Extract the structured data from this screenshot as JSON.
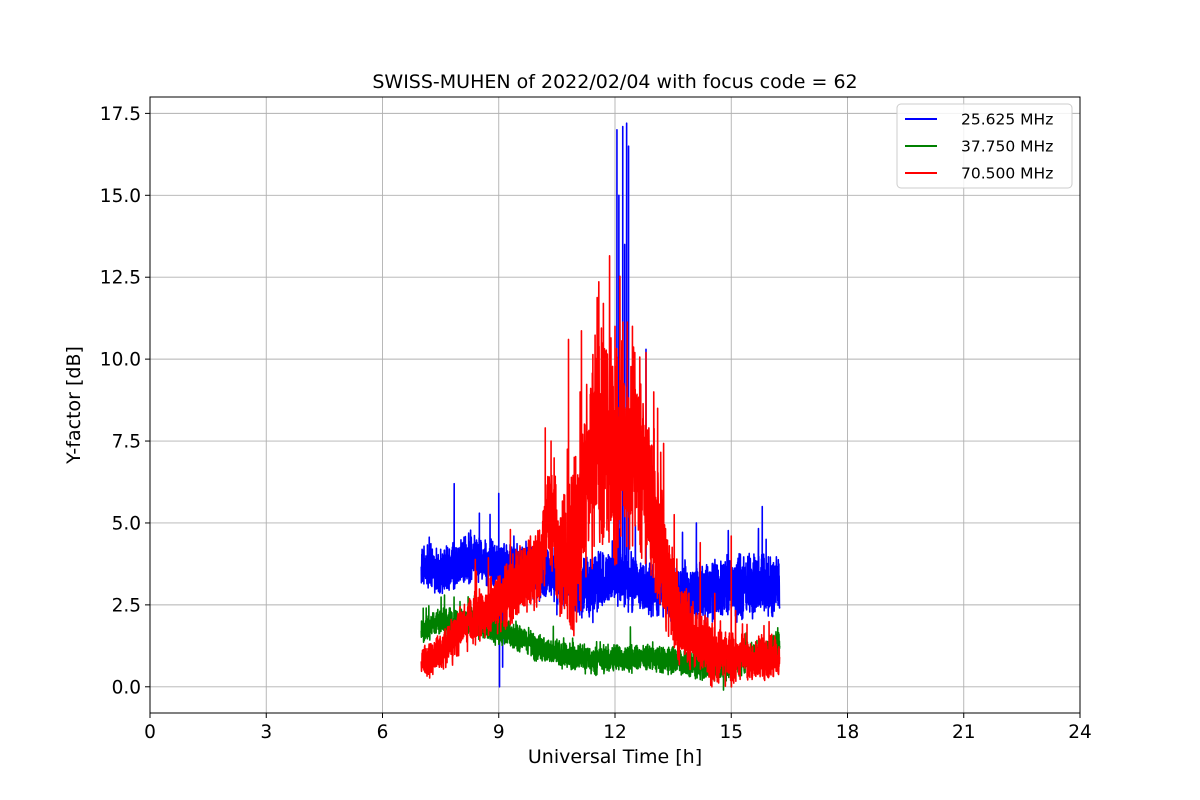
{
  "chart_data": {
    "type": "line",
    "title": "SWISS-MUHEN of 2022/02/04 with focus code = 62",
    "xlabel": "Universal Time [h]",
    "ylabel": "Y-factor [dB]",
    "xlim": [
      0,
      24
    ],
    "ylim": [
      -0.8,
      18.0
    ],
    "xticks": [
      0,
      3,
      6,
      9,
      12,
      15,
      18,
      21,
      24
    ],
    "xtick_labels": [
      "0",
      "3",
      "6",
      "9",
      "12",
      "15",
      "18",
      "21",
      "24"
    ],
    "yticks": [
      0.0,
      2.5,
      5.0,
      7.5,
      10.0,
      12.5,
      15.0,
      17.5
    ],
    "ytick_labels": [
      "0.0",
      "2.5",
      "5.0",
      "7.5",
      "10.0",
      "12.5",
      "15.0",
      "17.5"
    ],
    "grid": true,
    "legend_position": "top-right",
    "series": [
      {
        "name": "25.625 MHz",
        "color": "#0000ff",
        "anchors": [
          [
            7.0,
            3.7
          ],
          [
            7.5,
            3.5
          ],
          [
            8.0,
            3.8
          ],
          [
            8.5,
            3.9
          ],
          [
            9.0,
            3.6
          ],
          [
            9.5,
            3.7
          ],
          [
            10.0,
            3.5
          ],
          [
            10.5,
            3.3
          ],
          [
            11.0,
            3.1
          ],
          [
            11.5,
            3.0
          ],
          [
            12.0,
            3.5
          ],
          [
            12.5,
            3.1
          ],
          [
            13.0,
            2.9
          ],
          [
            13.5,
            2.8
          ],
          [
            14.0,
            2.9
          ],
          [
            14.5,
            2.9
          ],
          [
            15.0,
            3.1
          ],
          [
            15.5,
            3.0
          ],
          [
            16.25,
            3.1
          ]
        ],
        "noise": [
          [
            7.0,
            0.55
          ],
          [
            12.0,
            0.8
          ],
          [
            13.0,
            0.6
          ],
          [
            14.0,
            0.8
          ],
          [
            16.25,
            0.8
          ]
        ],
        "spikes": [
          [
            7.85,
            6.2
          ],
          [
            8.5,
            5.3
          ],
          [
            9.0,
            5.9
          ],
          [
            9.02,
            0.0
          ],
          [
            9.1,
            0.6
          ],
          [
            12.05,
            17.0
          ],
          [
            12.2,
            17.1
          ],
          [
            12.3,
            17.2
          ],
          [
            12.1,
            15.0
          ],
          [
            12.25,
            13.5
          ],
          [
            12.35,
            16.5
          ],
          [
            12.8,
            10.3
          ],
          [
            14.1,
            5.0
          ],
          [
            15.8,
            5.5
          ],
          [
            15.9,
            4.5
          ],
          [
            10.5,
            2.2
          ]
        ]
      },
      {
        "name": "37.750 MHz",
        "color": "#008000",
        "anchors": [
          [
            7.0,
            1.7
          ],
          [
            7.5,
            2.0
          ],
          [
            8.0,
            2.0
          ],
          [
            8.5,
            1.9
          ],
          [
            9.0,
            1.7
          ],
          [
            9.5,
            1.5
          ],
          [
            10.0,
            1.2
          ],
          [
            10.5,
            1.0
          ],
          [
            11.0,
            0.9
          ],
          [
            11.5,
            0.8
          ],
          [
            12.0,
            0.9
          ],
          [
            12.5,
            0.85
          ],
          [
            13.0,
            0.9
          ],
          [
            13.5,
            0.8
          ],
          [
            14.0,
            0.7
          ],
          [
            14.5,
            0.6
          ],
          [
            15.0,
            0.65
          ],
          [
            15.5,
            0.9
          ],
          [
            16.0,
            1.1
          ],
          [
            16.25,
            1.3
          ]
        ],
        "noise": [
          [
            7.0,
            0.35
          ],
          [
            16.25,
            0.35
          ]
        ],
        "spikes": [
          [
            7.05,
            2.4
          ],
          [
            7.6,
            2.8
          ],
          [
            8.0,
            2.6
          ],
          [
            14.8,
            -0.1
          ],
          [
            15.0,
            0.0
          ],
          [
            16.2,
            1.8
          ]
        ]
      },
      {
        "name": "70.500 MHz",
        "color": "#ff0000",
        "anchors": [
          [
            7.0,
            0.7
          ],
          [
            7.5,
            1.0
          ],
          [
            8.0,
            1.7
          ],
          [
            8.5,
            2.2
          ],
          [
            9.0,
            2.6
          ],
          [
            9.5,
            3.2
          ],
          [
            10.0,
            3.6
          ],
          [
            10.3,
            5.0
          ],
          [
            10.6,
            4.2
          ],
          [
            11.0,
            4.5
          ],
          [
            11.3,
            6.5
          ],
          [
            11.6,
            8.0
          ],
          [
            12.0,
            7.0
          ],
          [
            12.3,
            7.5
          ],
          [
            12.7,
            6.8
          ],
          [
            13.0,
            5.5
          ],
          [
            13.3,
            3.5
          ],
          [
            13.6,
            2.2
          ],
          [
            14.0,
            1.6
          ],
          [
            14.5,
            1.0
          ],
          [
            15.0,
            0.9
          ],
          [
            15.5,
            0.8
          ],
          [
            16.25,
            0.9
          ]
        ],
        "noise": [
          [
            7.0,
            0.4
          ],
          [
            10.0,
            1.0
          ],
          [
            11.5,
            2.8
          ],
          [
            12.5,
            2.6
          ],
          [
            13.3,
            1.5
          ],
          [
            14.0,
            0.8
          ],
          [
            16.25,
            0.5
          ]
        ],
        "spikes": [
          [
            9.3,
            4.8
          ],
          [
            10.2,
            7.9
          ],
          [
            10.35,
            7.5
          ],
          [
            10.8,
            10.6
          ],
          [
            11.1,
            9.0
          ],
          [
            11.55,
            11.8
          ],
          [
            11.7,
            11.7
          ],
          [
            12.0,
            11.0
          ],
          [
            12.45,
            11.0
          ],
          [
            12.8,
            10.2
          ],
          [
            13.0,
            9.0
          ],
          [
            13.1,
            8.5
          ],
          [
            14.5,
            0.0
          ],
          [
            14.2,
            4.4
          ],
          [
            15.0,
            4.6
          ]
        ]
      }
    ]
  }
}
